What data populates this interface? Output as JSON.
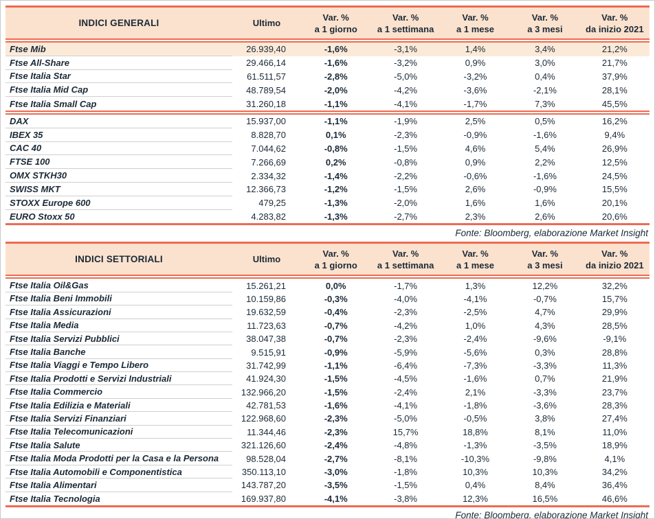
{
  "colors": {
    "accent": "#ee6a51",
    "header_bg": "#fbe2ce",
    "highlight_bg": "#fcead9",
    "text": "#1b2936",
    "divider": "#cfcfcf"
  },
  "tables": [
    {
      "title": "INDICI GENERALI",
      "ultimo_label": "Ultimo",
      "var_headers": [
        {
          "l1": "Var. %",
          "l2": "a 1 giorno"
        },
        {
          "l1": "Var. %",
          "l2": "a 1 settimana"
        },
        {
          "l1": "Var. %",
          "l2": "a 1 mese"
        },
        {
          "l1": "Var. %",
          "l2": "a 3 mesi"
        },
        {
          "l1": "Var. %",
          "l2": "da inizio 2021"
        }
      ],
      "groups": [
        {
          "rows": [
            {
              "name": "Ftse Mib",
              "ultimo": "26.939,40",
              "d1": "-1,6%",
              "w1": "-3,1%",
              "m1": "1,4%",
              "m3": "3,4%",
              "ytd": "21,2%",
              "highlight": true
            },
            {
              "name": "Ftse All-Share",
              "ultimo": "29.466,14",
              "d1": "-1,6%",
              "w1": "-3,2%",
              "m1": "0,9%",
              "m3": "3,0%",
              "ytd": "21,7%"
            },
            {
              "name": "Ftse Italia Star",
              "ultimo": "61.511,57",
              "d1": "-2,8%",
              "w1": "-5,0%",
              "m1": "-3,2%",
              "m3": "0,4%",
              "ytd": "37,9%"
            },
            {
              "name": "Ftse Italia Mid Cap",
              "ultimo": "48.789,54",
              "d1": "-2,0%",
              "w1": "-4,2%",
              "m1": "-3,6%",
              "m3": "-2,1%",
              "ytd": "28,1%"
            },
            {
              "name": "Ftse Italia Small Cap",
              "ultimo": "31.260,18",
              "d1": "-1,1%",
              "w1": "-4,1%",
              "m1": "-1,7%",
              "m3": "7,3%",
              "ytd": "45,5%"
            }
          ]
        },
        {
          "rows": [
            {
              "name": "DAX",
              "ultimo": "15.937,00",
              "d1": "-1,1%",
              "w1": "-1,9%",
              "m1": "2,5%",
              "m3": "0,5%",
              "ytd": "16,2%"
            },
            {
              "name": "IBEX 35",
              "ultimo": "8.828,70",
              "d1": "0,1%",
              "w1": "-2,3%",
              "m1": "-0,9%",
              "m3": "-1,6%",
              "ytd": "9,4%"
            },
            {
              "name": "CAC 40",
              "ultimo": "7.044,62",
              "d1": "-0,8%",
              "w1": "-1,5%",
              "m1": "4,6%",
              "m3": "5,4%",
              "ytd": "26,9%"
            },
            {
              "name": "FTSE 100",
              "ultimo": "7.266,69",
              "d1": "0,2%",
              "w1": "-0,8%",
              "m1": "0,9%",
              "m3": "2,2%",
              "ytd": "12,5%"
            },
            {
              "name": "OMX STKH30",
              "ultimo": "2.334,32",
              "d1": "-1,4%",
              "w1": "-2,2%",
              "m1": "-0,6%",
              "m3": "-1,6%",
              "ytd": "24,5%"
            },
            {
              "name": "SWISS MKT",
              "ultimo": "12.366,73",
              "d1": "-1,2%",
              "w1": "-1,5%",
              "m1": "2,6%",
              "m3": "-0,9%",
              "ytd": "15,5%"
            },
            {
              "name": "STOXX Europe 600",
              "ultimo": "479,25",
              "d1": "-1,3%",
              "w1": "-2,0%",
              "m1": "1,6%",
              "m3": "1,6%",
              "ytd": "20,1%"
            },
            {
              "name": "EURO Stoxx 50",
              "ultimo": "4.283,82",
              "d1": "-1,3%",
              "w1": "-2,7%",
              "m1": "2,3%",
              "m3": "2,6%",
              "ytd": "20,6%"
            }
          ]
        }
      ],
      "fonte": "Fonte: Bloomberg, elaborazione Market Insight"
    },
    {
      "title": "INDICI SETTORIALI",
      "ultimo_label": "Ultimo",
      "var_headers": [
        {
          "l1": "Var. %",
          "l2": "a 1 giorno"
        },
        {
          "l1": "Var. %",
          "l2": "a 1 settimana"
        },
        {
          "l1": "Var. %",
          "l2": "a 1 mese"
        },
        {
          "l1": "Var. %",
          "l2": "a 3 mesi"
        },
        {
          "l1": "Var. %",
          "l2": "da inizio 2021"
        }
      ],
      "groups": [
        {
          "rows": [
            {
              "name": "Ftse Italia Oil&Gas",
              "ultimo": "15.261,21",
              "d1": "0,0%",
              "w1": "-1,7%",
              "m1": "1,3%",
              "m3": "12,2%",
              "ytd": "32,2%"
            },
            {
              "name": "Ftse Italia Beni Immobili",
              "ultimo": "10.159,86",
              "d1": "-0,3%",
              "w1": "-4,0%",
              "m1": "-4,1%",
              "m3": "-0,7%",
              "ytd": "15,7%"
            },
            {
              "name": "Ftse Italia Assicurazioni",
              "ultimo": "19.632,59",
              "d1": "-0,4%",
              "w1": "-2,3%",
              "m1": "-2,5%",
              "m3": "4,7%",
              "ytd": "29,9%"
            },
            {
              "name": "Ftse Italia Media",
              "ultimo": "11.723,63",
              "d1": "-0,7%",
              "w1": "-4,2%",
              "m1": "1,0%",
              "m3": "4,3%",
              "ytd": "28,5%"
            },
            {
              "name": "Ftse Italia Servizi Pubblici",
              "ultimo": "38.047,38",
              "d1": "-0,7%",
              "w1": "-2,3%",
              "m1": "-2,4%",
              "m3": "-9,6%",
              "ytd": "-9,1%"
            },
            {
              "name": "Ftse Italia Banche",
              "ultimo": "9.515,91",
              "d1": "-0,9%",
              "w1": "-5,9%",
              "m1": "-5,6%",
              "m3": "0,3%",
              "ytd": "28,8%"
            },
            {
              "name": "Ftse Italia Viaggi e Tempo Libero",
              "ultimo": "31.742,99",
              "d1": "-1,1%",
              "w1": "-6,4%",
              "m1": "-7,3%",
              "m3": "-3,3%",
              "ytd": "11,3%"
            },
            {
              "name": "Ftse Italia Prodotti e Servizi Industriali",
              "ultimo": "41.924,30",
              "d1": "-1,5%",
              "w1": "-4,5%",
              "m1": "-1,6%",
              "m3": "0,7%",
              "ytd": "21,9%"
            },
            {
              "name": "Ftse Italia Commercio",
              "ultimo": "132.966,20",
              "d1": "-1,5%",
              "w1": "-2,4%",
              "m1": "2,1%",
              "m3": "-3,3%",
              "ytd": "23,7%"
            },
            {
              "name": "Ftse Italia Edilizia e Materiali",
              "ultimo": "42.781,53",
              "d1": "-1,6%",
              "w1": "-4,1%",
              "m1": "-1,8%",
              "m3": "-3,6%",
              "ytd": "28,3%"
            },
            {
              "name": "Ftse Italia Servizi Finanziari",
              "ultimo": "122.968,60",
              "d1": "-2,3%",
              "w1": "-5,0%",
              "m1": "-0,5%",
              "m3": "3,8%",
              "ytd": "27,4%"
            },
            {
              "name": "Ftse Italia Telecomunicazioni",
              "ultimo": "11.344,46",
              "d1": "-2,3%",
              "w1": "15,7%",
              "m1": "18,8%",
              "m3": "8,1%",
              "ytd": "11,0%"
            },
            {
              "name": "Ftse Italia Salute",
              "ultimo": "321.126,60",
              "d1": "-2,4%",
              "w1": "-4,8%",
              "m1": "-1,3%",
              "m3": "-3,5%",
              "ytd": "18,9%"
            },
            {
              "name": "Ftse Italia Moda Prodotti per la Casa e la Persona",
              "ultimo": "98.528,04",
              "d1": "-2,7%",
              "w1": "-8,1%",
              "m1": "-10,3%",
              "m3": "-9,8%",
              "ytd": "4,1%"
            },
            {
              "name": "Ftse Italia Automobili e Componentistica",
              "ultimo": "350.113,10",
              "d1": "-3,0%",
              "w1": "-1,8%",
              "m1": "10,3%",
              "m3": "10,3%",
              "ytd": "34,2%"
            },
            {
              "name": "Ftse Italia Alimentari",
              "ultimo": "143.787,20",
              "d1": "-3,5%",
              "w1": "-1,5%",
              "m1": "0,4%",
              "m3": "8,4%",
              "ytd": "36,4%"
            },
            {
              "name": "Ftse Italia Tecnologia",
              "ultimo": "169.937,80",
              "d1": "-4,1%",
              "w1": "-3,8%",
              "m1": "12,3%",
              "m3": "16,5%",
              "ytd": "46,6%"
            }
          ]
        }
      ],
      "fonte": "Fonte: Bloomberg, elaborazione Market Insight"
    }
  ]
}
